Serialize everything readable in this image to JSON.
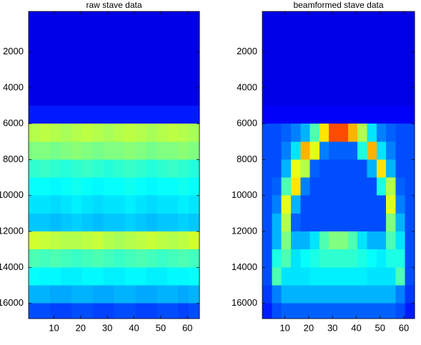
{
  "chart_data": [
    {
      "type": "heatmap",
      "title": "raw stave data",
      "colormap": "jet",
      "clim": [
        0,
        1
      ],
      "y_reversed": true,
      "xlim": [
        0.5,
        64.5
      ],
      "xticks": [
        10,
        20,
        30,
        40,
        50,
        60
      ],
      "ylim": [
        -250,
        16850
      ],
      "yticks": [
        2000,
        4000,
        6000,
        8000,
        10000,
        12000,
        14000,
        16000
      ],
      "x_bins": [
        0.5,
        4.5,
        8.5,
        12.5,
        16.5,
        20.5,
        24.5,
        28.5,
        32.5,
        36.5,
        40.5,
        44.5,
        48.5,
        52.5,
        56.5,
        60.5,
        64.5
      ],
      "y_bins": [
        -250,
        1000,
        2000,
        3000,
        4000,
        5000,
        6000,
        7000,
        8000,
        9000,
        10000,
        11000,
        12000,
        13000,
        14000,
        15000,
        16000,
        16850
      ],
      "z": [
        [
          0.1,
          0.1,
          0.1,
          0.1,
          0.1,
          0.1,
          0.1,
          0.1,
          0.1,
          0.1,
          0.1,
          0.1,
          0.1,
          0.1,
          0.1,
          0.1
        ],
        [
          0.1,
          0.1,
          0.1,
          0.1,
          0.1,
          0.1,
          0.1,
          0.1,
          0.1,
          0.1,
          0.1,
          0.1,
          0.1,
          0.1,
          0.1,
          0.1
        ],
        [
          0.1,
          0.1,
          0.1,
          0.1,
          0.1,
          0.1,
          0.1,
          0.1,
          0.1,
          0.1,
          0.1,
          0.1,
          0.1,
          0.1,
          0.1,
          0.1
        ],
        [
          0.1,
          0.1,
          0.1,
          0.1,
          0.1,
          0.1,
          0.1,
          0.1,
          0.1,
          0.1,
          0.1,
          0.1,
          0.1,
          0.1,
          0.1,
          0.1
        ],
        [
          0.1,
          0.1,
          0.1,
          0.1,
          0.1,
          0.1,
          0.1,
          0.1,
          0.1,
          0.1,
          0.1,
          0.1,
          0.1,
          0.1,
          0.1,
          0.1
        ],
        [
          0.15,
          0.15,
          0.15,
          0.15,
          0.15,
          0.15,
          0.15,
          0.15,
          0.15,
          0.15,
          0.15,
          0.15,
          0.15,
          0.15,
          0.15,
          0.15
        ],
        [
          0.55,
          0.56,
          0.55,
          0.54,
          0.55,
          0.56,
          0.55,
          0.54,
          0.55,
          0.56,
          0.55,
          0.54,
          0.55,
          0.56,
          0.55,
          0.54
        ],
        [
          0.5,
          0.5,
          0.49,
          0.5,
          0.51,
          0.5,
          0.49,
          0.5,
          0.5,
          0.51,
          0.5,
          0.49,
          0.5,
          0.5,
          0.51,
          0.5
        ],
        [
          0.42,
          0.43,
          0.42,
          0.41,
          0.42,
          0.43,
          0.42,
          0.41,
          0.42,
          0.43,
          0.42,
          0.41,
          0.42,
          0.43,
          0.42,
          0.41
        ],
        [
          0.38,
          0.38,
          0.37,
          0.38,
          0.39,
          0.38,
          0.37,
          0.38,
          0.38,
          0.39,
          0.38,
          0.37,
          0.38,
          0.38,
          0.39,
          0.38
        ],
        [
          0.35,
          0.35,
          0.34,
          0.35,
          0.36,
          0.35,
          0.34,
          0.35,
          0.35,
          0.36,
          0.35,
          0.34,
          0.35,
          0.35,
          0.36,
          0.35
        ],
        [
          0.32,
          0.32,
          0.31,
          0.32,
          0.33,
          0.32,
          0.31,
          0.32,
          0.32,
          0.33,
          0.32,
          0.31,
          0.32,
          0.32,
          0.33,
          0.32
        ],
        [
          0.58,
          0.57,
          0.56,
          0.55,
          0.55,
          0.56,
          0.57,
          0.55,
          0.54,
          0.55,
          0.56,
          0.57,
          0.56,
          0.55,
          0.56,
          0.58
        ],
        [
          0.45,
          0.44,
          0.45,
          0.44,
          0.43,
          0.44,
          0.45,
          0.44,
          0.43,
          0.44,
          0.45,
          0.44,
          0.43,
          0.44,
          0.45,
          0.44
        ],
        [
          0.38,
          0.37,
          0.37,
          0.36,
          0.36,
          0.37,
          0.37,
          0.36,
          0.36,
          0.37,
          0.37,
          0.36,
          0.36,
          0.37,
          0.37,
          0.38
        ],
        [
          0.3,
          0.3,
          0.29,
          0.29,
          0.3,
          0.3,
          0.29,
          0.29,
          0.3,
          0.3,
          0.29,
          0.29,
          0.3,
          0.3,
          0.29,
          0.3
        ],
        [
          0.2,
          0.2,
          0.19,
          0.19,
          0.2,
          0.2,
          0.19,
          0.19,
          0.2,
          0.2,
          0.19,
          0.19,
          0.2,
          0.2,
          0.19,
          0.2
        ]
      ]
    },
    {
      "type": "heatmap",
      "title": "beamformed stave data",
      "colormap": "jet",
      "clim": [
        0,
        1
      ],
      "y_reversed": true,
      "xlim": [
        0.5,
        64.5
      ],
      "xticks": [
        10,
        20,
        30,
        40,
        50,
        60
      ],
      "ylim": [
        -250,
        16850
      ],
      "yticks": [
        2000,
        4000,
        6000,
        8000,
        10000,
        12000,
        14000,
        16000
      ],
      "x_bins": [
        0.5,
        4.5,
        8.5,
        12.5,
        16.5,
        20.5,
        24.5,
        28.5,
        32.5,
        36.5,
        40.5,
        44.5,
        48.5,
        52.5,
        56.5,
        60.5,
        64.5
      ],
      "y_bins": [
        -250,
        1000,
        2000,
        3000,
        4000,
        5000,
        6000,
        7000,
        8000,
        9000,
        10000,
        11000,
        12000,
        13000,
        14000,
        15000,
        16000,
        16850
      ],
      "z": [
        [
          0.1,
          0.1,
          0.1,
          0.1,
          0.1,
          0.1,
          0.1,
          0.1,
          0.1,
          0.1,
          0.1,
          0.1,
          0.1,
          0.1,
          0.1,
          0.1
        ],
        [
          0.1,
          0.1,
          0.1,
          0.1,
          0.1,
          0.1,
          0.1,
          0.1,
          0.1,
          0.1,
          0.1,
          0.1,
          0.1,
          0.1,
          0.1,
          0.1
        ],
        [
          0.1,
          0.1,
          0.1,
          0.1,
          0.1,
          0.1,
          0.1,
          0.1,
          0.1,
          0.1,
          0.1,
          0.1,
          0.1,
          0.1,
          0.1,
          0.1
        ],
        [
          0.1,
          0.1,
          0.1,
          0.1,
          0.1,
          0.1,
          0.1,
          0.1,
          0.1,
          0.1,
          0.1,
          0.1,
          0.1,
          0.1,
          0.1,
          0.1
        ],
        [
          0.1,
          0.1,
          0.1,
          0.1,
          0.1,
          0.1,
          0.1,
          0.1,
          0.1,
          0.1,
          0.1,
          0.1,
          0.1,
          0.1,
          0.1,
          0.1
        ],
        [
          0.12,
          0.12,
          0.12,
          0.12,
          0.12,
          0.12,
          0.12,
          0.12,
          0.12,
          0.12,
          0.12,
          0.12,
          0.12,
          0.12,
          0.12,
          0.12
        ],
        [
          0.2,
          0.2,
          0.22,
          0.25,
          0.3,
          0.45,
          0.65,
          0.8,
          0.8,
          0.7,
          0.55,
          0.35,
          0.25,
          0.22,
          0.2,
          0.2
        ],
        [
          0.2,
          0.2,
          0.25,
          0.35,
          0.7,
          0.6,
          0.25,
          0.22,
          0.22,
          0.22,
          0.4,
          0.7,
          0.35,
          0.25,
          0.2,
          0.2
        ],
        [
          0.2,
          0.2,
          0.3,
          0.6,
          0.55,
          0.22,
          0.2,
          0.2,
          0.2,
          0.2,
          0.2,
          0.3,
          0.65,
          0.3,
          0.2,
          0.2
        ],
        [
          0.2,
          0.22,
          0.45,
          0.65,
          0.25,
          0.2,
          0.2,
          0.2,
          0.2,
          0.2,
          0.2,
          0.2,
          0.4,
          0.55,
          0.22,
          0.2
        ],
        [
          0.2,
          0.25,
          0.6,
          0.3,
          0.2,
          0.2,
          0.2,
          0.2,
          0.2,
          0.2,
          0.2,
          0.2,
          0.2,
          0.6,
          0.25,
          0.2
        ],
        [
          0.2,
          0.3,
          0.55,
          0.22,
          0.2,
          0.2,
          0.2,
          0.2,
          0.2,
          0.2,
          0.2,
          0.2,
          0.2,
          0.5,
          0.3,
          0.2
        ],
        [
          0.2,
          0.3,
          0.5,
          0.3,
          0.3,
          0.35,
          0.45,
          0.5,
          0.5,
          0.45,
          0.35,
          0.3,
          0.3,
          0.45,
          0.35,
          0.2
        ],
        [
          0.2,
          0.4,
          0.45,
          0.35,
          0.38,
          0.4,
          0.42,
          0.42,
          0.42,
          0.42,
          0.4,
          0.38,
          0.36,
          0.4,
          0.4,
          0.2
        ],
        [
          0.2,
          0.45,
          0.35,
          0.35,
          0.35,
          0.36,
          0.36,
          0.36,
          0.36,
          0.36,
          0.36,
          0.35,
          0.35,
          0.35,
          0.45,
          0.2
        ],
        [
          0.18,
          0.25,
          0.3,
          0.3,
          0.3,
          0.3,
          0.3,
          0.3,
          0.3,
          0.3,
          0.3,
          0.3,
          0.3,
          0.3,
          0.25,
          0.18
        ],
        [
          0.15,
          0.2,
          0.22,
          0.22,
          0.22,
          0.22,
          0.22,
          0.22,
          0.22,
          0.22,
          0.22,
          0.22,
          0.22,
          0.22,
          0.2,
          0.15
        ]
      ]
    }
  ]
}
